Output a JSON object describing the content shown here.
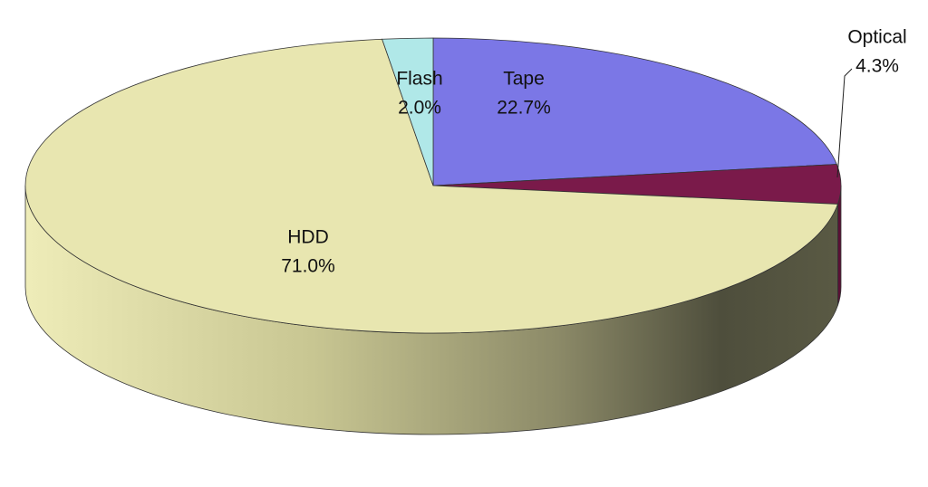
{
  "chart_data": {
    "type": "pie",
    "categories": [
      "Tape",
      "Optical",
      "HDD",
      "Flash"
    ],
    "values": [
      22.7,
      4.3,
      71.0,
      2.0
    ],
    "value_labels": [
      "22.7%",
      "4.3%",
      "71.0%",
      "2.0%"
    ],
    "colors": [
      "#7b77e6",
      "#7a1a4a",
      "#e8e6b0",
      "#b0e8e8"
    ]
  }
}
